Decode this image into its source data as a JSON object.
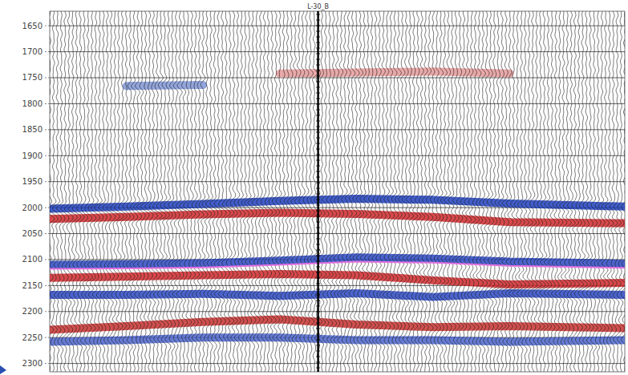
{
  "chart_data": {
    "type": "seismic",
    "well": {
      "label": "L-30_B",
      "x": 70
    },
    "xlim": [
      0,
      150
    ],
    "ylim": [
      1622,
      2316
    ],
    "yticks": [
      1650,
      1700,
      1750,
      1800,
      1850,
      1900,
      1950,
      2000,
      2050,
      2100,
      2150,
      2200,
      2250,
      2300
    ],
    "grid": true,
    "tick_labels": "y",
    "x": [
      0,
      20,
      40,
      60,
      80,
      100,
      120,
      150
    ],
    "series": [
      {
        "type": "reflector",
        "color": "#7f95d6",
        "values": [
          null,
          1766,
          1764,
          null,
          null,
          null,
          null,
          null
        ]
      },
      {
        "type": "reflector",
        "color": "#e59a9a",
        "values": [
          null,
          null,
          null,
          1742,
          1740,
          1738,
          1742,
          null
        ]
      },
      {
        "type": "reflector",
        "color": "#1f3fbf",
        "values": [
          2002,
          1998,
          1993,
          1987,
          1983,
          1985,
          1992,
          1998
        ]
      },
      {
        "type": "reflector",
        "color": "#d0282a",
        "values": [
          2022,
          2018,
          2013,
          2010,
          2012,
          2018,
          2028,
          2030
        ]
      },
      {
        "type": "reflector",
        "color": "#2a48c4",
        "values": [
          2110,
          2109,
          2107,
          2102,
          2096,
          2098,
          2104,
          2108
        ]
      },
      {
        "type": "reflector",
        "color": "#d0282a",
        "values": [
          2135,
          2133,
          2130,
          2128,
          2130,
          2140,
          2148,
          2145
        ]
      },
      {
        "type": "reflector",
        "color": "#2a48c4",
        "values": [
          2168,
          2168,
          2166,
          2170,
          2165,
          2172,
          2165,
          2168
        ]
      },
      {
        "type": "reflector",
        "color": "#c8302e",
        "values": [
          2235,
          2228,
          2220,
          2215,
          2225,
          2230,
          2228,
          2232
        ]
      },
      {
        "type": "reflector",
        "color": "#4a64cc",
        "values": [
          2258,
          2255,
          2250,
          2250,
          2255,
          2255,
          2258,
          2255
        ]
      },
      {
        "type": "horizon",
        "color": "#e070e0",
        "values": [
          2118,
          2117,
          2115,
          2110,
          2104,
          2106,
          2112,
          2116
        ]
      }
    ]
  }
}
